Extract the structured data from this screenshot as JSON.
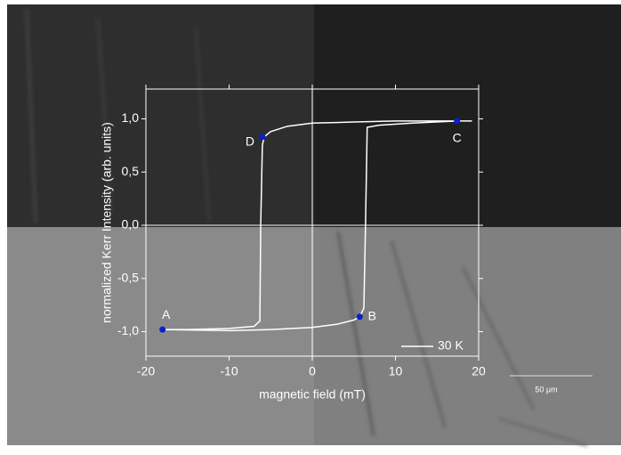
{
  "chart_data": {
    "type": "line",
    "x_label": "magnetic field (mT)",
    "y_label": "normalized Kerr Intensity (arb. units)",
    "xlim": [
      -20,
      20
    ],
    "ylim": [
      -1.23,
      1.28
    ],
    "xticks": [
      -20,
      -10,
      0,
      10,
      20
    ],
    "yticks": [
      {
        "value": -1.0,
        "label": "-1,0"
      },
      {
        "value": -0.5,
        "label": "-0,5"
      },
      {
        "value": 0.0,
        "label": "0,0"
      },
      {
        "value": 0.5,
        "label": "0,5"
      },
      {
        "value": 1.0,
        "label": "1,0"
      }
    ],
    "series": [
      {
        "name": "30 K",
        "color": "#ffffff",
        "x": [
          19.2,
          17.4,
          10,
          5,
          0,
          -3,
          -5,
          -5.8,
          -6.0,
          -6.2,
          -6.3,
          -7,
          -10,
          -15,
          -18,
          -10,
          -5,
          0,
          3,
          5,
          5.7,
          6.2,
          6.4,
          6.6,
          8,
          12,
          17.4,
          19.2
        ],
        "values": [
          0.98,
          0.98,
          0.98,
          0.97,
          0.96,
          0.93,
          0.88,
          0.83,
          0.75,
          0.0,
          -0.9,
          -0.95,
          -0.97,
          -0.98,
          -0.98,
          -0.99,
          -0.98,
          -0.96,
          -0.93,
          -0.89,
          -0.86,
          -0.78,
          0.0,
          0.92,
          0.94,
          0.96,
          0.98,
          0.98
        ]
      }
    ],
    "annotations": [
      {
        "text": "A",
        "x": -18,
        "y": -0.98
      },
      {
        "text": "B",
        "x": 5.7,
        "y": -0.86
      },
      {
        "text": "C",
        "x": 17.4,
        "y": 0.98
      },
      {
        "text": "D",
        "x": -6,
        "y": 0.83
      }
    ],
    "point_color": "#0a1fd0",
    "legend": "lower right"
  },
  "image": {
    "scale_bar_label": "50 μm"
  }
}
